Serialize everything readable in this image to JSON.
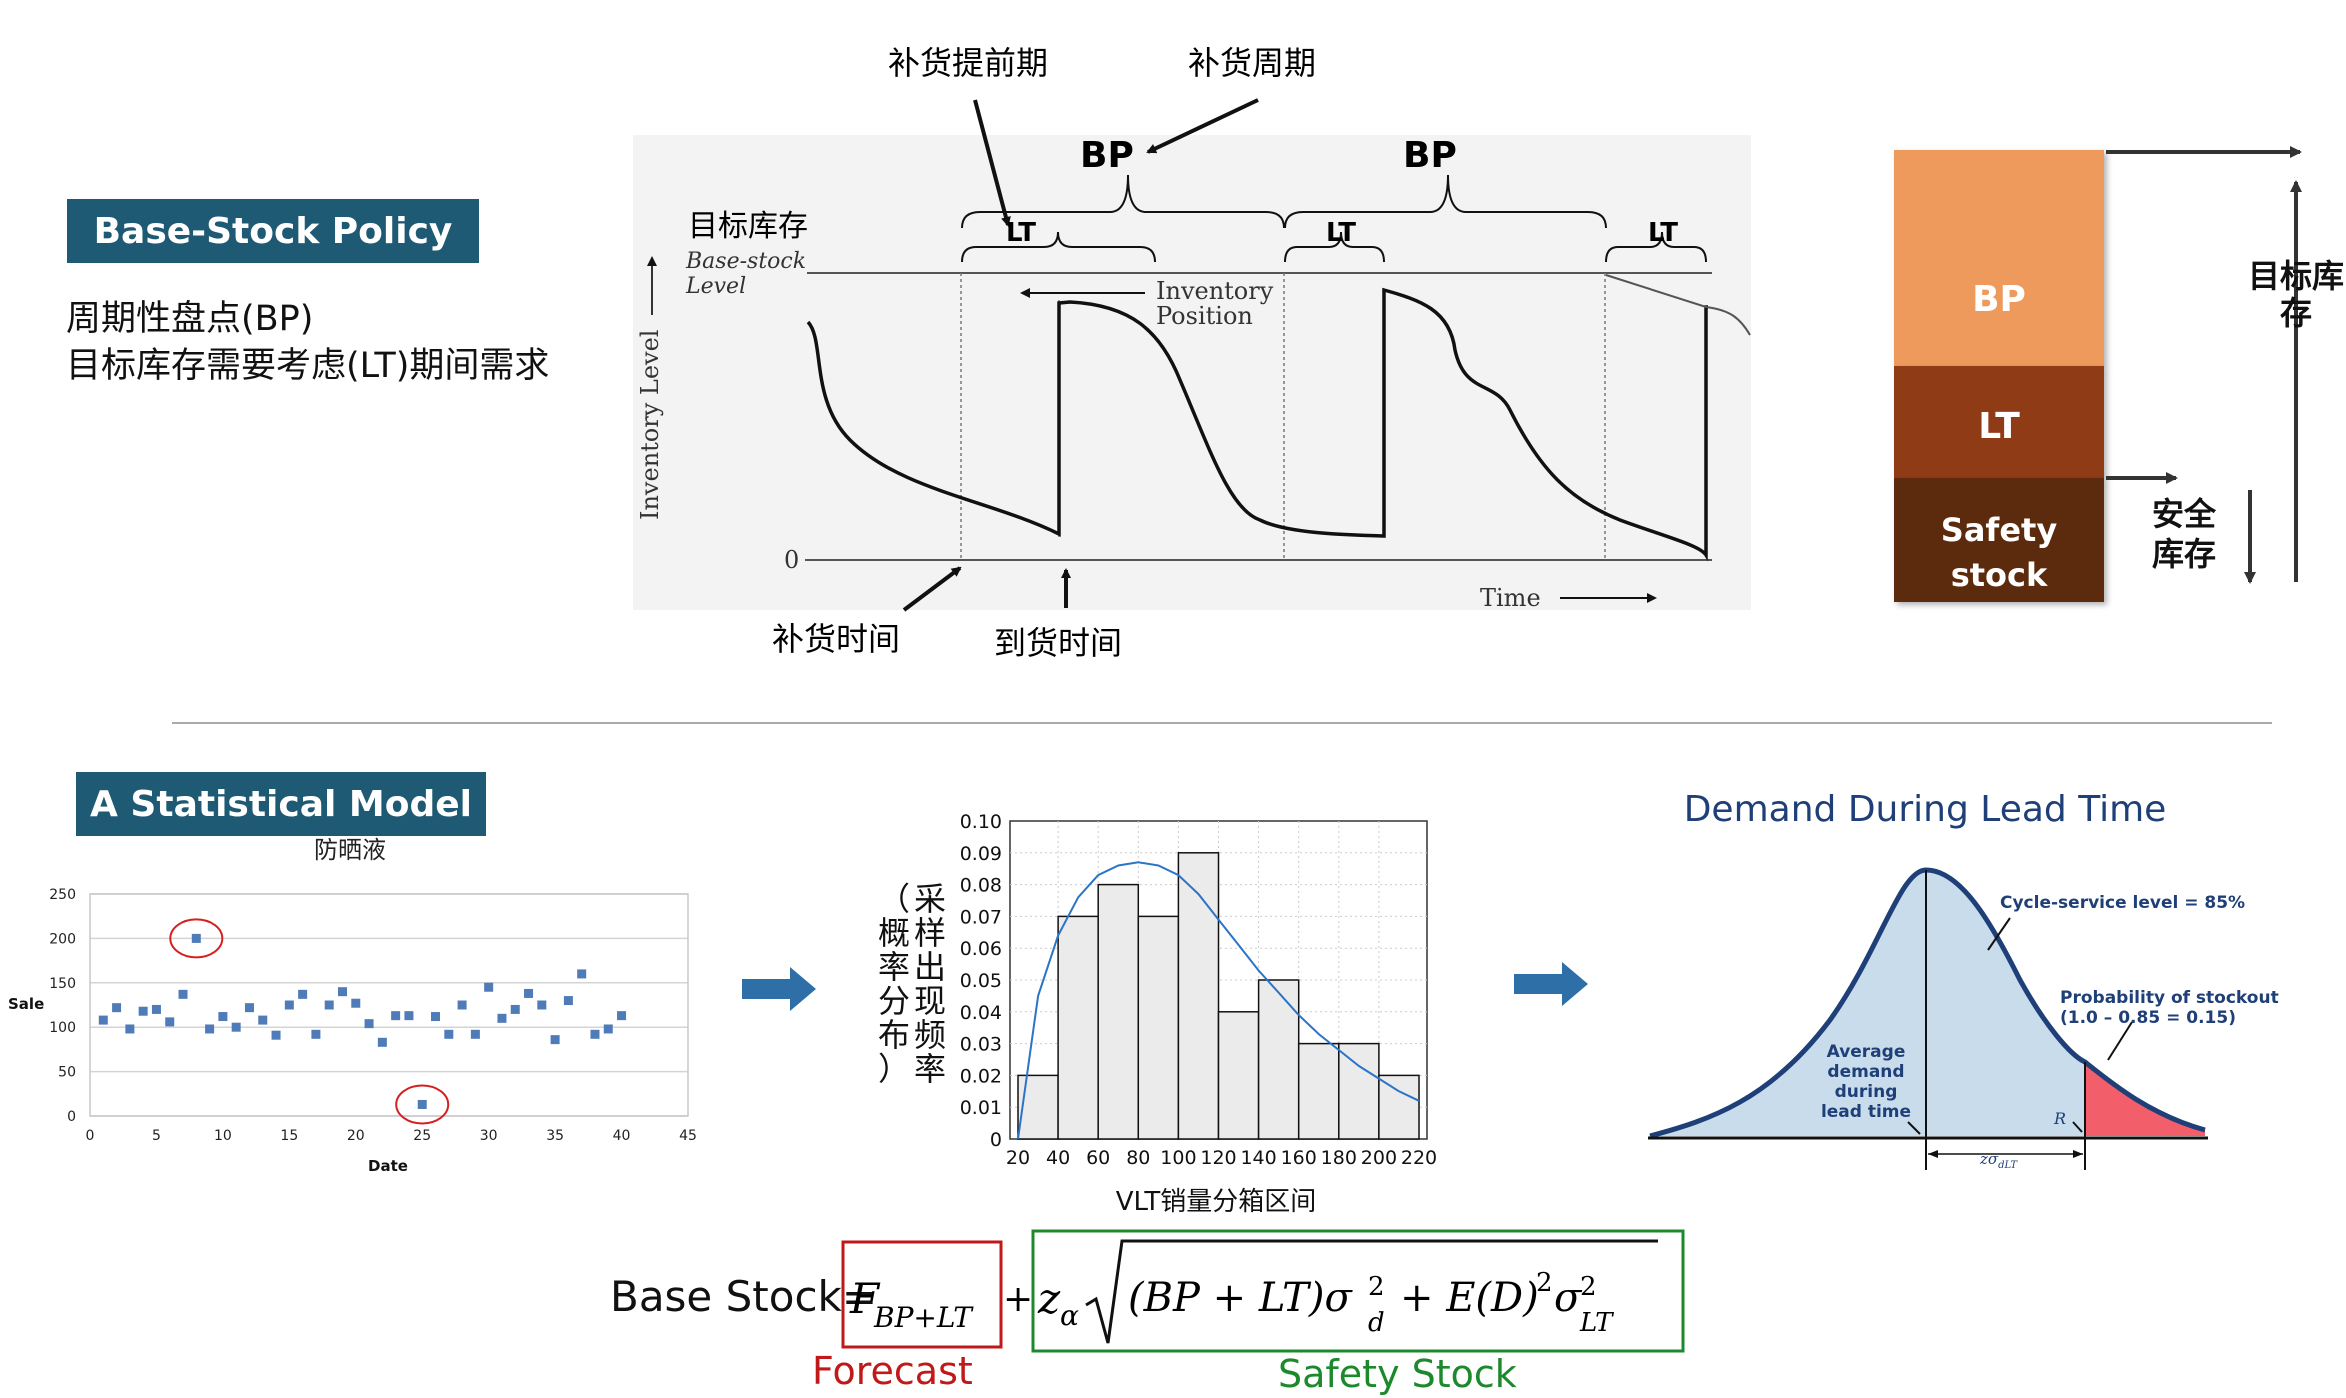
{
  "top": {
    "tag": "Base-Stock Policy",
    "desc_line1": "周期性盘点(BP)",
    "desc_line2": "目标库存需要考虑(LT)期间需求"
  },
  "inventory_diagram": {
    "label_lead": "补货提前期",
    "label_cycle": "补货周期",
    "bp1": "BP",
    "bp2": "BP",
    "lt1": "LT",
    "lt2": "LT",
    "lt3": "LT",
    "target_cn": "目标库存",
    "base_stock_1": "Base-stock",
    "base_stock_2": "Level",
    "inv_pos_1": "Inventory",
    "inv_pos_2": "Position",
    "y_axis": "Inventory Level",
    "zero": "0",
    "time": "Time",
    "order_time": "补货时间",
    "arrival_time": "到货时间"
  },
  "stack": {
    "bp": "BP",
    "lt": "LT",
    "safety1": "Safety",
    "safety2": "stock",
    "target1": "目标库",
    "target2": "存",
    "safety_cn1": "安全",
    "safety_cn2": "库存",
    "colors": {
      "bp": "#ee9a5b",
      "lt": "#8f3b12",
      "safety": "#5c2a0c"
    }
  },
  "bottom": {
    "tag": "A Statistical Model",
    "scatter": {
      "title": "防晒液",
      "ylabel": "Sale",
      "xlabel": "Date",
      "yticks": [
        "0",
        "50",
        "100",
        "150",
        "200",
        "250"
      ],
      "xticks": [
        "0",
        "5",
        "10",
        "15",
        "20",
        "25",
        "30",
        "35",
        "40",
        "45"
      ]
    },
    "histogram": {
      "ylabel": "采样出现频率（概率分布）",
      "xlabel": "VLT销量分箱区间",
      "yticks": [
        "0",
        "0.01",
        "0.02",
        "0.03",
        "0.04",
        "0.05",
        "0.06",
        "0.07",
        "0.08",
        "0.09",
        "0.10"
      ],
      "xticks": [
        "20",
        "40",
        "60",
        "80",
        "100",
        "120",
        "140",
        "160",
        "180",
        "200",
        "220"
      ]
    },
    "normal": {
      "title": "Demand During Lead Time",
      "csl": "Cycle-service level = 85%",
      "prob1": "Probability of stockout",
      "prob2": "(1.0 – 0.85 = 0.15)",
      "avg1": "Average",
      "avg2": "demand",
      "avg3": "during",
      "avg4": "lead time",
      "r": "R",
      "z": "zσ",
      "z_sub": "dLT"
    },
    "formula": {
      "prefix": "Base Stock=",
      "forecast_label": "Forecast",
      "safety_label": "Safety Stock",
      "colors": {
        "forecast": "#c0191a",
        "safety": "#1c8a2c"
      }
    }
  },
  "chart_data": [
    {
      "type": "scatter",
      "title": "防晒液",
      "xlabel": "Date",
      "ylabel": "Sale",
      "xlim": [
        0,
        45
      ],
      "ylim": [
        0,
        250
      ],
      "grid": true,
      "series": [
        {
          "x": [
            1,
            2,
            3,
            4,
            5,
            6,
            7,
            8,
            9,
            10,
            11,
            12,
            13,
            14,
            15,
            16,
            17,
            18,
            19,
            20,
            21,
            22,
            23,
            24,
            25,
            26,
            27,
            28,
            29,
            30,
            31,
            32,
            33,
            34,
            35,
            36,
            37,
            38,
            39,
            40
          ],
          "y": [
            108,
            122,
            98,
            118,
            120,
            106,
            137,
            200,
            98,
            112,
            100,
            122,
            108,
            91,
            125,
            137,
            92,
            125,
            140,
            127,
            104,
            83,
            113,
            113,
            13,
            112,
            92,
            125,
            92,
            145,
            110,
            120,
            138,
            125,
            86,
            130,
            160,
            92,
            98,
            113
          ]
        }
      ],
      "highlighted_points": [
        [
          8,
          200
        ],
        [
          25,
          13
        ]
      ]
    },
    {
      "type": "bar",
      "xlabel": "VLT销量分箱区间",
      "ylabel": "采样出现频率（概率分布）",
      "categories": [
        "20-40",
        "40-60",
        "60-80",
        "80-100",
        "100-120",
        "120-140",
        "140-160",
        "160-180",
        "180-200",
        "200-220"
      ],
      "values": [
        0.02,
        0.07,
        0.08,
        0.07,
        0.09,
        0.04,
        0.05,
        0.03,
        0.03,
        0.02
      ],
      "xlim": [
        20,
        220
      ],
      "ylim": [
        0,
        0.1
      ],
      "grid": true,
      "fitted_curve": {
        "x": [
          20,
          30,
          40,
          50,
          60,
          70,
          80,
          90,
          100,
          110,
          120,
          130,
          140,
          150,
          160,
          170,
          180,
          190,
          200,
          210,
          220
        ],
        "y": [
          0.0,
          0.045,
          0.064,
          0.076,
          0.083,
          0.086,
          0.087,
          0.086,
          0.083,
          0.077,
          0.069,
          0.061,
          0.053,
          0.046,
          0.039,
          0.033,
          0.028,
          0.023,
          0.019,
          0.015,
          0.012
        ]
      }
    }
  ]
}
